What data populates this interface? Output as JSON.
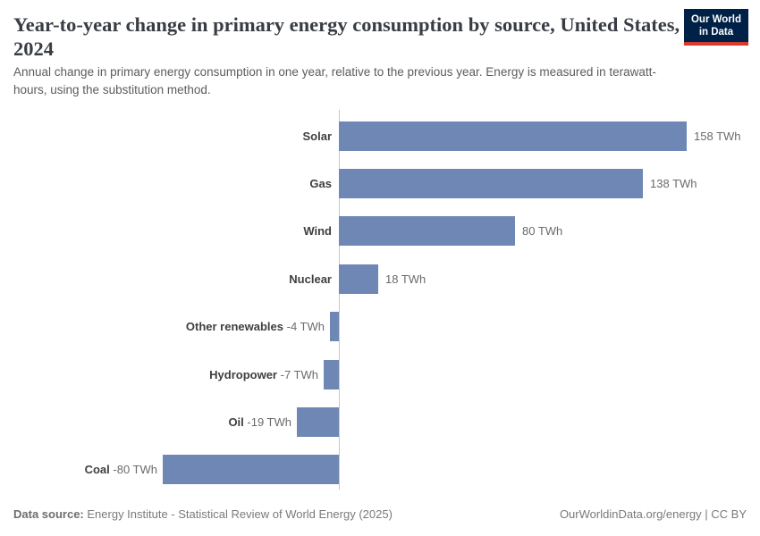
{
  "header": {
    "title": "Year-to-year change in primary energy consumption by source, United States, 2024",
    "subtitle": "Annual change in primary energy consumption in one year, relative to the previous year. Energy is measured in terawatt-hours, using the substitution method.",
    "logo": {
      "line1": "Our World",
      "line2": "in Data"
    }
  },
  "chart_data": {
    "type": "bar",
    "orientation": "horizontal",
    "title": "Year-to-year change in primary energy consumption by source, United States, 2024",
    "categories": [
      "Solar",
      "Gas",
      "Wind",
      "Nuclear",
      "Other renewables",
      "Hydropower",
      "Oil",
      "Coal"
    ],
    "values": [
      158,
      138,
      80,
      18,
      -4,
      -7,
      -19,
      -80
    ],
    "value_labels": [
      "158 TWh",
      "138 TWh",
      "80 TWh",
      "18 TWh",
      "-4 TWh",
      "-7 TWh",
      "-19 TWh",
      "-80 TWh"
    ],
    "unit": "TWh",
    "xlim": [
      -100,
      190
    ],
    "grid": false,
    "legend": "none",
    "bar_color": "#6e87b5",
    "zero_axis_color": "#c9c9c9"
  },
  "footer": {
    "source_label": "Data source:",
    "source_text": "Energy Institute - Statistical Review of World Energy (2025)",
    "link_text": "OurWorldinData.org/energy | CC BY"
  },
  "colors": {
    "title": "#383d44",
    "subtitle": "#5c5c5c",
    "category_label": "#3f3f3f",
    "value_label": "#6b6b6b",
    "logo_bg": "#002147",
    "logo_accent": "#d63a2e"
  }
}
